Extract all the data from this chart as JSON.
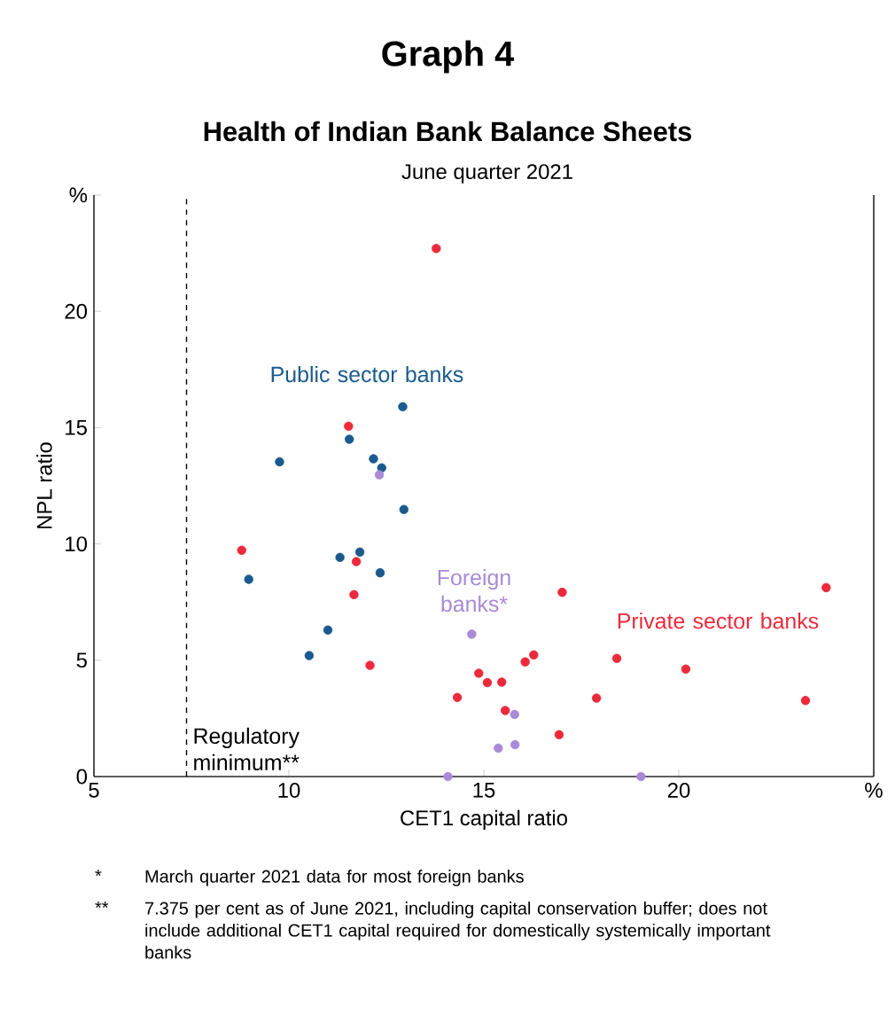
{
  "chart_data": {
    "type": "scatter",
    "title": "Health of Indian Bank Balance Sheets",
    "subtitle": "June quarter 2021",
    "xlabel": "CET1 capital ratio",
    "ylabel": "NPL ratio",
    "annotations": [
      "Graph 4",
      "*",
      "March quarter 2021 data for most foreign banks",
      "**",
      "7.375 per cent as of June 2021, including capital conservation buffer; does not include additional CET1 capital required for domestically systemically important banks"
    ],
    "xlim": [
      5,
      25
    ],
    "ylim": [
      0,
      25
    ],
    "xticks": [
      5,
      10,
      15,
      20,
      {
        "value": 25,
        "label": "%"
      }
    ],
    "yticks": [
      0,
      5,
      10,
      15,
      20,
      {
        "value": 25,
        "label": "%"
      }
    ],
    "legend": false,
    "grid": false,
    "ref_lines": [
      {
        "axis": "x",
        "value": 7.375,
        "label": "Regulatory minimum**",
        "color": "#000000",
        "line_style": "dashed"
      }
    ],
    "series": [
      {
        "name": "Public sector banks",
        "color": "#1a5a8e",
        "x": [
          12.92,
          11.55,
          9.76,
          12.17,
          12.38,
          12.95,
          11.31,
          11.82,
          8.97,
          12.34,
          11.0,
          10.52
        ],
        "values": [
          15.9,
          14.5,
          13.53,
          13.66,
          13.27,
          11.48,
          9.42,
          9.65,
          8.48,
          8.76,
          6.3,
          5.2
        ]
      },
      {
        "name": "Foreign banks*",
        "color": "#a98ad6",
        "x": [
          12.32,
          14.69,
          15.79,
          15.8,
          15.37,
          14.08,
          19.03
        ],
        "values": [
          12.97,
          6.12,
          2.67,
          1.37,
          1.22,
          0,
          0
        ]
      },
      {
        "name": "Private sector banks",
        "color": "#ec2a3c",
        "x": [
          13.78,
          11.53,
          8.79,
          11.73,
          11.67,
          12.08,
          17.01,
          23.78,
          18.41,
          20.18,
          16.28,
          16.06,
          14.87,
          15.09,
          15.46,
          14.32,
          17.89,
          23.25,
          15.55,
          16.93
        ],
        "values": [
          22.7,
          15.06,
          9.73,
          9.24,
          7.82,
          4.78,
          7.92,
          8.12,
          5.08,
          4.62,
          5.23,
          4.93,
          4.44,
          4.04,
          4.06,
          3.4,
          3.37,
          3.27,
          2.84,
          1.8
        ]
      }
    ]
  }
}
